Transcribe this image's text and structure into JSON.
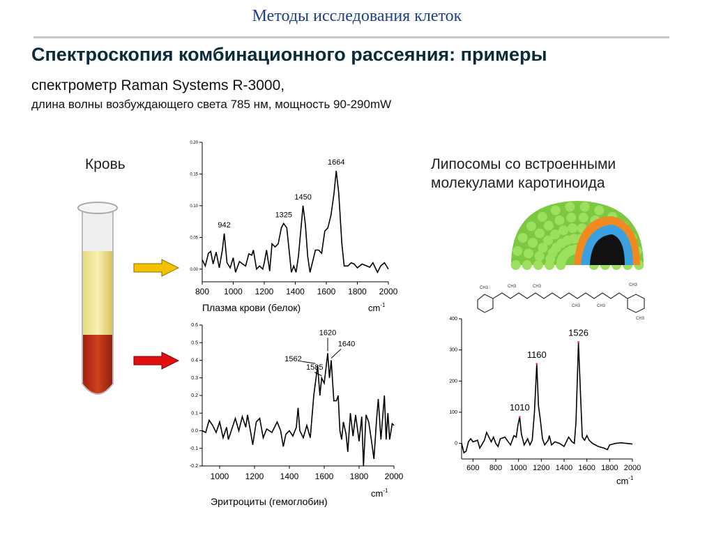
{
  "header": "Методы исследования клеток",
  "title": "Спектроскопия комбинационного рассеяния: примеры",
  "subtitle_line1": "спектрометр Raman Systems R-3000,",
  "subtitle_line2": "длина волны возбуждающего света 785 нм, мощность 90-290mW",
  "blood_label": "Кровь",
  "liposome_label_line1": "Липосомы со встроенными",
  "liposome_label_line2": "молекулами каротиноида",
  "colors": {
    "header": "#1f3f8a",
    "plasma_arrow": "#f2c200",
    "erythrocyte_arrow": "#e01010",
    "line": "#000000",
    "peak_marker": "#ff4040"
  },
  "icons": [
    "test-tube-icon",
    "arrow-right-icon",
    "liposome-icon",
    "carotenoid-molecule-icon"
  ],
  "chart_data": [
    {
      "type": "line",
      "xlabel": "Плазма крови (белок)",
      "unit": "cm-1",
      "xlim": [
        800,
        2000
      ],
      "ylim": [
        -0.02,
        0.2
      ],
      "xticks": [
        800,
        1000,
        1200,
        1400,
        1600,
        1800,
        2000
      ],
      "yticks": [
        "0.00",
        "0.05",
        "0.10",
        "0.15",
        "0.20"
      ],
      "annotations": [
        {
          "text": "942",
          "x": 942,
          "y": 0.056
        },
        {
          "text": "1325",
          "x": 1325,
          "y": 0.072
        },
        {
          "text": "1450",
          "x": 1450,
          "y": 0.1
        },
        {
          "text": "1664",
          "x": 1664,
          "y": 0.155
        }
      ],
      "x": [
        800,
        820,
        840,
        855,
        870,
        890,
        910,
        930,
        942,
        960,
        980,
        1000,
        1015,
        1040,
        1060,
        1080,
        1100,
        1120,
        1130,
        1150,
        1170,
        1190,
        1200,
        1215,
        1235,
        1250,
        1270,
        1290,
        1310,
        1325,
        1345,
        1360,
        1375,
        1390,
        1405,
        1420,
        1435,
        1450,
        1465,
        1480,
        1495,
        1510,
        1530,
        1550,
        1570,
        1590,
        1610,
        1630,
        1650,
        1664,
        1680,
        1700,
        1715,
        1740,
        1760,
        1780,
        1800,
        1830,
        1860,
        1880,
        1900,
        1930,
        1950,
        1975,
        2000
      ],
      "y": [
        0.015,
        0.005,
        0.025,
        0.028,
        0.008,
        0.027,
        0.002,
        0.03,
        0.056,
        0.01,
        0.002,
        0.018,
        -0.005,
        0.012,
        0.008,
        0.005,
        0.024,
        0.022,
        0.03,
        0.0,
        0.005,
        0.0,
        0.01,
        0.03,
        -0.003,
        0.04,
        0.035,
        0.04,
        0.065,
        0.072,
        0.065,
        0.03,
        -0.005,
        0.005,
        -0.005,
        0.02,
        0.06,
        0.1,
        0.07,
        0.02,
        -0.005,
        0.01,
        0.03,
        0.03,
        0.025,
        0.06,
        0.065,
        0.085,
        0.12,
        0.155,
        0.12,
        0.04,
        0.005,
        0.005,
        0.01,
        0.008,
        0.002,
        0.008,
        0.005,
        0.003,
        0.01,
        -0.005,
        0.005,
        0.01,
        0.0
      ]
    },
    {
      "type": "line",
      "xlabel": "Эритроциты (гемоглобин)",
      "unit": "cm-1",
      "xlim": [
        900,
        2000
      ],
      "ylim": [
        -0.2,
        0.6
      ],
      "xticks": [
        1000,
        1200,
        1400,
        1600,
        1800,
        2000
      ],
      "yticks": [
        "-0.2",
        "-0.1",
        "0.0",
        "0.1",
        "0.2",
        "0.3",
        "0.4",
        "0.5",
        "0.6"
      ],
      "annotations": [
        {
          "text": "1562",
          "x": 1562,
          "y": 0.37
        },
        {
          "text": "1585",
          "x": 1585,
          "y": 0.3
        },
        {
          "text": "1620",
          "x": 1620,
          "y": 0.44
        },
        {
          "text": "1640",
          "x": 1640,
          "y": 0.4
        }
      ],
      "x": [
        900,
        920,
        940,
        960,
        980,
        1000,
        1020,
        1040,
        1050,
        1070,
        1090,
        1110,
        1130,
        1150,
        1160,
        1180,
        1190,
        1210,
        1230,
        1250,
        1270,
        1300,
        1330,
        1350,
        1365,
        1380,
        1400,
        1420,
        1440,
        1450,
        1460,
        1480,
        1500,
        1520,
        1540,
        1562,
        1575,
        1585,
        1600,
        1620,
        1630,
        1640,
        1655,
        1670,
        1680,
        1690,
        1700,
        1710,
        1725,
        1735,
        1750,
        1765,
        1780,
        1800,
        1815,
        1825,
        1840,
        1855,
        1870,
        1885,
        1900,
        1910,
        1925,
        1945,
        1955,
        1965,
        1975,
        1990,
        2000
      ],
      "y": [
        0.0,
        -0.01,
        0.06,
        0.03,
        -0.01,
        0.05,
        -0.04,
        0.02,
        -0.05,
        0.01,
        0.07,
        0.0,
        0.08,
        0.02,
        0.09,
        -0.02,
        -0.08,
        0.05,
        0.07,
        -0.04,
        0.01,
        -0.01,
        0.05,
        0.0,
        -0.09,
        -0.02,
        0.0,
        -0.03,
        0.02,
        0.13,
        0.0,
        -0.04,
        0.03,
        -0.04,
        0.2,
        0.37,
        0.2,
        0.3,
        0.27,
        0.44,
        0.3,
        0.4,
        0.17,
        0.17,
        0.2,
        0.0,
        -0.05,
        0.05,
        -0.02,
        -0.12,
        0.1,
        -0.03,
        0.09,
        -0.06,
        0.08,
        -0.2,
        0.09,
        0.05,
        -0.05,
        -0.16,
        0.06,
        0.18,
        -0.05,
        0.2,
        -0.05,
        0.1,
        -0.05,
        0.04,
        0.03
      ]
    },
    {
      "type": "line",
      "xlabel": "",
      "unit": "cm-1",
      "xlim": [
        500,
        2000
      ],
      "ylim": [
        -50,
        400
      ],
      "xticks": [
        600,
        800,
        1000,
        1200,
        1400,
        1600,
        1800,
        2000
      ],
      "yticks": [
        "0",
        "100",
        "200",
        "300",
        "400"
      ],
      "annotations": [
        {
          "text": "1010",
          "x": 1010,
          "y": 85
        },
        {
          "text": "1160",
          "x": 1160,
          "y": 255
        },
        {
          "text": "1526",
          "x": 1526,
          "y": 325
        }
      ],
      "x": [
        500,
        520,
        540,
        560,
        580,
        600,
        640,
        660,
        700,
        720,
        740,
        760,
        780,
        800,
        820,
        840,
        880,
        900,
        930,
        960,
        980,
        995,
        1010,
        1025,
        1050,
        1080,
        1100,
        1120,
        1140,
        1160,
        1175,
        1190,
        1210,
        1230,
        1260,
        1270,
        1290,
        1320,
        1360,
        1400,
        1440,
        1470,
        1490,
        1505,
        1526,
        1545,
        1560,
        1580,
        1600,
        1620,
        1650,
        1700,
        1750,
        1780,
        1800,
        1850,
        1900,
        1950,
        2000
      ],
      "y": [
        0,
        -30,
        -25,
        5,
        15,
        5,
        10,
        -15,
        10,
        35,
        20,
        5,
        20,
        0,
        -10,
        15,
        20,
        10,
        -5,
        25,
        20,
        60,
        85,
        30,
        -5,
        15,
        -5,
        10,
        100,
        255,
        120,
        80,
        15,
        -5,
        10,
        25,
        -5,
        5,
        0,
        -10,
        20,
        5,
        0,
        70,
        325,
        150,
        20,
        10,
        25,
        10,
        0,
        -10,
        -15,
        -20,
        -5,
        0,
        2,
        0,
        -2
      ]
    }
  ]
}
